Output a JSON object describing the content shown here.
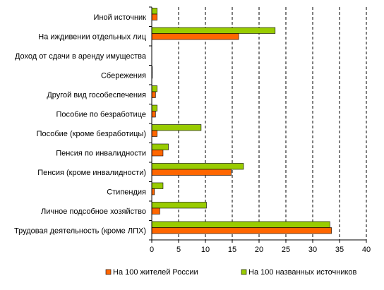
{
  "chart_data": {
    "type": "bar",
    "orientation": "horizontal",
    "categories": [
      "Иной источник",
      "На иждивении отдельных лиц",
      "Доход от сдачи в аренду имущества",
      "Сбережения",
      "Другой вид гособеспечения",
      "Пособие по безработице",
      "Пособие (кроме безработицы)",
      "Пенсия по инвалидности",
      "Пенсия (кроме инвалидности)",
      "Стипендия",
      "Личное подсобное хозяйство",
      "Трудовая деятельность (кроме ЛПХ)"
    ],
    "series": [
      {
        "name": "На 100 названных источников",
        "color": "#99cc00",
        "values": [
          1.0,
          23.0,
          0.0,
          0.1,
          1.0,
          1.0,
          9.2,
          3.1,
          17.1,
          2.1,
          10.2,
          33.2
        ]
      },
      {
        "name": "На 100 жителей России",
        "color": "#ff6600",
        "values": [
          1.0,
          16.2,
          0.0,
          0.1,
          0.7,
          0.7,
          1.0,
          2.1,
          14.8,
          0.5,
          1.5,
          33.5
        ]
      }
    ],
    "x_ticks": [
      "0",
      "5",
      "10",
      "15",
      "20",
      "25",
      "30",
      "35",
      "40"
    ],
    "xlim": [
      0,
      40
    ],
    "legend_position": "bottom",
    "grid": "vertical-dashed",
    "title": "",
    "xlabel": "",
    "ylabel": ""
  }
}
